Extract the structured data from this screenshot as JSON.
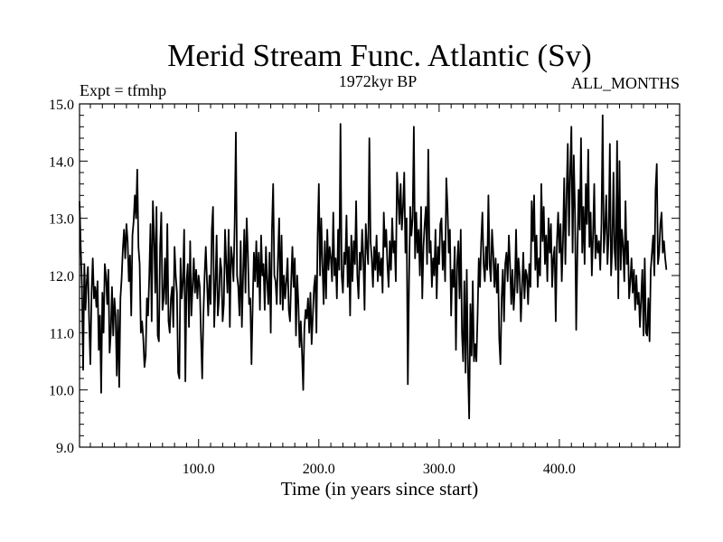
{
  "chart_data": {
    "type": "line",
    "title": "Merid Stream Func. Atlantic (Sv)",
    "subtitle": "1972kyr BP",
    "left_label": "Expt = tfmhp",
    "right_label": "ALL_MONTHS",
    "xlabel": "Time (in years since start)",
    "ylabel": "",
    "xlim": [
      1,
      500
    ],
    "ylim": [
      9.0,
      15.0
    ],
    "x_ticks": [
      100,
      200,
      300,
      400
    ],
    "x_tick_labels": [
      "100.0",
      "200.0",
      "300.0",
      "400.0"
    ],
    "y_ticks": [
      9,
      10,
      11,
      12,
      13,
      14,
      15
    ],
    "y_tick_labels": [
      "9.0",
      "10.0",
      "11.0",
      "12.0",
      "13.0",
      "14.0",
      "15.0"
    ],
    "line_color": "#000000",
    "series": [
      {
        "name": "Merid Stream Func. Atlantic",
        "x_start": 1,
        "x_step": 1,
        "values": [
          13.3,
          12.5,
          11.8,
          10.35,
          12.2,
          11.4,
          11.9,
          12.15,
          11.2,
          10.45,
          11.7,
          12.3,
          11.6,
          11.8,
          11.45,
          11.9,
          10.7,
          11.3,
          9.95,
          11.7,
          11.0,
          12.2,
          12.0,
          11.5,
          12.1,
          10.65,
          11.0,
          11.8,
          10.95,
          11.6,
          11.3,
          10.25,
          11.4,
          10.05,
          11.6,
          11.95,
          12.45,
          12.8,
          12.3,
          12.9,
          12.6,
          11.9,
          12.35,
          11.3,
          12.7,
          12.95,
          13.4,
          13.0,
          13.85,
          12.5,
          12.2,
          11.0,
          11.2,
          10.9,
          10.4,
          10.6,
          11.6,
          11.3,
          12.0,
          12.9,
          11.2,
          13.3,
          12.7,
          11.7,
          13.2,
          10.95,
          10.85,
          12.5,
          13.1,
          11.4,
          11.6,
          12.3,
          11.5,
          12.9,
          11.2,
          11.0,
          11.6,
          11.8,
          11.1,
          12.5,
          12.0,
          11.7,
          10.3,
          10.2,
          12.3,
          11.6,
          11.9,
          12.8,
          10.15,
          11.9,
          12.2,
          11.1,
          12.6,
          11.3,
          11.8,
          12.3,
          11.7,
          12.1,
          11.6,
          12.0,
          11.8,
          10.95,
          10.2,
          11.3,
          12.0,
          12.5,
          11.9,
          11.3,
          12.0,
          11.5,
          12.8,
          13.2,
          11.1,
          11.8,
          12.7,
          11.3,
          11.6,
          12.3,
          12.1,
          11.2,
          11.5,
          12.8,
          12.2,
          11.7,
          12.8,
          11.1,
          12.5,
          12.3,
          11.9,
          12.9,
          14.5,
          12.0,
          11.8,
          11.3,
          12.6,
          11.1,
          12.0,
          12.8,
          11.7,
          13.0,
          12.4,
          11.5,
          11.6,
          10.45,
          11.5,
          12.4,
          11.9,
          12.6,
          11.8,
          12.4,
          11.4,
          12.7,
          12.0,
          12.2,
          11.4,
          12.5,
          11.9,
          11.5,
          12.4,
          11.0,
          12.8,
          13.6,
          12.0,
          11.9,
          11.5,
          12.3,
          13.0,
          11.5,
          12.7,
          11.4,
          12.0,
          11.6,
          11.9,
          12.3,
          11.4,
          11.2,
          11.9,
          12.5,
          11.8,
          12.3,
          10.95,
          12.0,
          11.5,
          10.75,
          11.2,
          10.65,
          10.0,
          11.1,
          11.4,
          11.25,
          11.6,
          11.0,
          11.7,
          10.8,
          11.3,
          11.8,
          12.0,
          11.0,
          12.7,
          13.6,
          12.0,
          13.0,
          12.2,
          11.5,
          12.6,
          11.6,
          12.8,
          12.1,
          12.5,
          12.3,
          11.9,
          13.1,
          12.0,
          12.3,
          11.6,
          12.8,
          12.1,
          14.65,
          12.0,
          11.7,
          12.4,
          12.2,
          13.05,
          11.8,
          12.5,
          11.3,
          12.7,
          11.9,
          12.6,
          12.2,
          13.3,
          12.0,
          11.6,
          12.4,
          12.1,
          12.8,
          12.3,
          11.4,
          12.9,
          12.5,
          12.2,
          14.4,
          12.6,
          12.3,
          11.8,
          12.5,
          12.1,
          12.7,
          11.9,
          12.4,
          12.0,
          12.3,
          11.7,
          13.1,
          12.5,
          12.8,
          12.2,
          11.8,
          12.6,
          12.1,
          13.0,
          12.4,
          12.6,
          11.9,
          13.8,
          13.4,
          12.9,
          13.6,
          12.8,
          13.2,
          13.8,
          12.4,
          13.0,
          10.1,
          11.9,
          13.2,
          12.7,
          13.0,
          14.6,
          12.3,
          13.1,
          12.4,
          12.8,
          12.0,
          13.2,
          11.6,
          12.5,
          12.9,
          13.2,
          12.2,
          14.2,
          12.4,
          12.6,
          11.8,
          12.3,
          12.0,
          12.8,
          11.6,
          12.5,
          12.2,
          12.9,
          13.0,
          12.1,
          12.6,
          11.9,
          13.7,
          13.2,
          12.4,
          12.8,
          11.3,
          12.1,
          11.8,
          12.5,
          10.7,
          12.2,
          12.6,
          11.6,
          12.8,
          11.0,
          10.5,
          11.9,
          10.3,
          12.1,
          10.4,
          9.5,
          11.5,
          10.6,
          11.9,
          10.5,
          10.8,
          10.5,
          11.3,
          12.3,
          11.8,
          12.6,
          13.1,
          12.2,
          11.9,
          12.5,
          12.1,
          13.4,
          12.2,
          11.9,
          12.8,
          12.4,
          11.8,
          12.3,
          11.7,
          12.2,
          10.9,
          10.45,
          11.6,
          12.1,
          11.2,
          12.2,
          12.4,
          11.9,
          12.7,
          12.2,
          11.5,
          12.1,
          11.4,
          11.8,
          12.8,
          11.7,
          12.3,
          12.0,
          11.2,
          11.8,
          12.4,
          11.6,
          12.1,
          12.0,
          11.5,
          12.2,
          11.8,
          13.3,
          12.6,
          13.4,
          12.1,
          12.7,
          11.8,
          12.3,
          12.0,
          13.6,
          12.6,
          13.2,
          12.2,
          12.7,
          11.9,
          13.0,
          12.4,
          12.9,
          11.8,
          12.3,
          12.5,
          11.2,
          12.6,
          13.1,
          12.4,
          12.9,
          11.9,
          12.6,
          13.7,
          12.2,
          13.4,
          14.3,
          12.7,
          13.8,
          14.6,
          12.4,
          14.1,
          13.1,
          11.05,
          12.4,
          13.5,
          12.8,
          14.4,
          12.4,
          13.2,
          12.2,
          13.6,
          12.9,
          14.2,
          12.5,
          13.1,
          12.0,
          12.7,
          13.6,
          12.3,
          12.7,
          12.4,
          12.6,
          12.1,
          12.9,
          14.8,
          12.4,
          12.8,
          13.4,
          12.2,
          12.7,
          14.3,
          12.0,
          12.5,
          13.8,
          12.4,
          12.1,
          14.35,
          11.6,
          14.0,
          12.1,
          12.8,
          12.5,
          11.9,
          13.3,
          12.2,
          12.6,
          11.6,
          11.9,
          12.3,
          11.7,
          12.1,
          11.4,
          12.0,
          11.5,
          11.7,
          11.1,
          11.6,
          12.1,
          10.95,
          12.3,
          11.0,
          10.95,
          11.6,
          10.85,
          12.1,
          12.4,
          12.7,
          12.0,
          13.5,
          13.95,
          12.2,
          12.4,
          12.9,
          13.1,
          12.4,
          12.6,
          12.3,
          12.1
        ]
      }
    ]
  }
}
